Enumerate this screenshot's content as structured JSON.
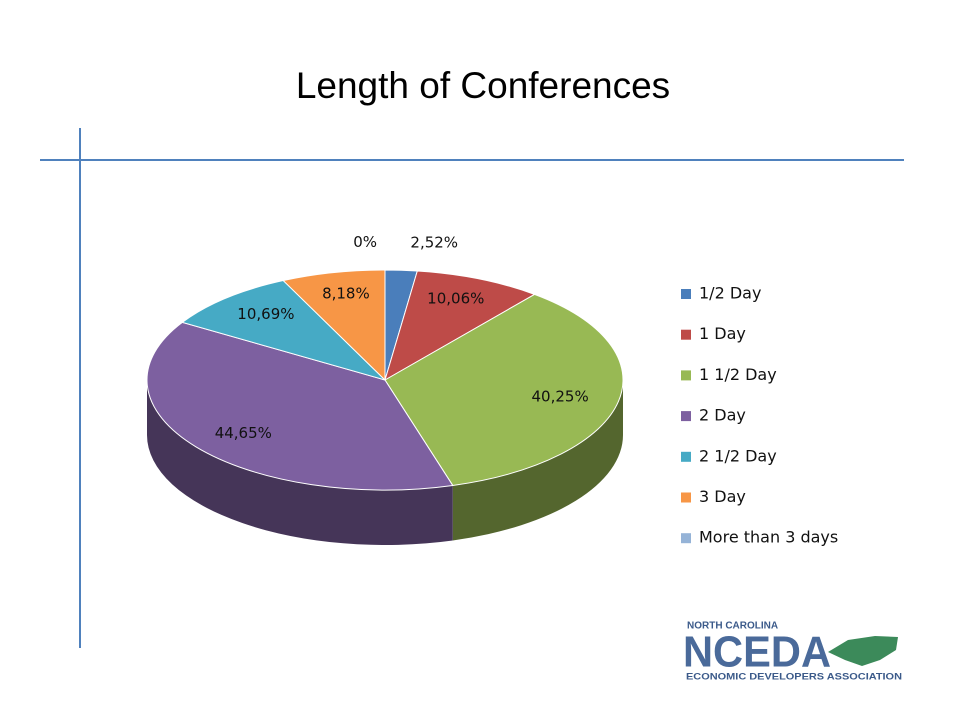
{
  "chart_data": {
    "type": "pie3d",
    "title": "Length of Conferences",
    "categories": [
      "1/2 Day",
      "1 Day",
      "1 1/2 Day",
      "2 Day",
      "2 1/2 Day",
      "3 Day",
      "More than 3 days"
    ],
    "values": [
      2.52,
      10.06,
      40.25,
      44.65,
      10.69,
      8.18,
      0
    ],
    "value_labels": [
      "2,52%",
      "10,06%",
      "40,25%",
      "44,65%",
      "10,69%",
      "8,18%",
      "0%"
    ],
    "colors": [
      "#4a7ebb",
      "#be4b48",
      "#98b954",
      "#7d60a0",
      "#46aac5",
      "#f79646",
      "#95b3d7"
    ],
    "legend": "right"
  },
  "logo": {
    "top": "NORTH CAROLINA",
    "name": "NCEDA",
    "bottom": "ECONOMIC DEVELOPERS ASSOCIATION"
  }
}
